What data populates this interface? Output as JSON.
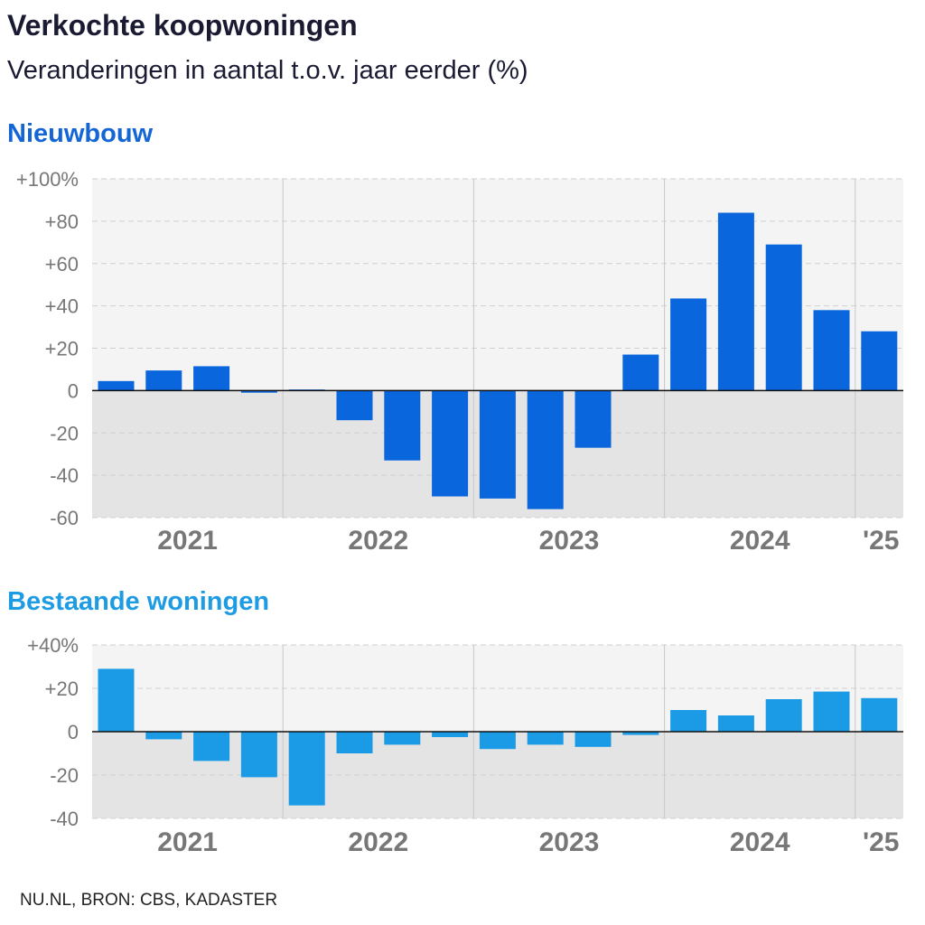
{
  "title": "Verkochte koopwoningen",
  "subtitle": "Veranderingen in aantal t.o.v. jaar eerder (%)",
  "source": "NU.NL, BRON: CBS, KADASTER",
  "chart_data": [
    {
      "type": "bar",
      "title": "Nieuwbouw",
      "color": "#0a66dd",
      "title_color": "#1465d6",
      "categories": [
        "2021 Q1",
        "2021 Q2",
        "2021 Q3",
        "2021 Q4",
        "2022 Q1",
        "2022 Q2",
        "2022 Q3",
        "2022 Q4",
        "2023 Q1",
        "2023 Q2",
        "2023 Q3",
        "2023 Q4",
        "2024 Q1",
        "2024 Q2",
        "2024 Q3",
        "2024 Q4",
        "2025 Q1"
      ],
      "values": [
        4.5,
        9.5,
        11.5,
        -1,
        0.5,
        -14,
        -33,
        -50,
        -51,
        -56,
        -27,
        17,
        43.5,
        84,
        69,
        38,
        28
      ],
      "ylim": [
        -60,
        100
      ],
      "yticks": [
        {
          "v": 100,
          "label": "+100%"
        },
        {
          "v": 80,
          "label": "+80"
        },
        {
          "v": 60,
          "label": "+60"
        },
        {
          "v": 40,
          "label": "+40"
        },
        {
          "v": 20,
          "label": "+20"
        },
        {
          "v": 0,
          "label": "0"
        },
        {
          "v": -20,
          "label": "-20"
        },
        {
          "v": -40,
          "label": "-40"
        },
        {
          "v": -60,
          "label": "-60"
        }
      ],
      "year_labels": [
        "2021",
        "2022",
        "2023",
        "2024",
        "'25"
      ],
      "grid": true
    },
    {
      "type": "bar",
      "title": "Bestaande woningen",
      "color": "#1b9be6",
      "title_color": "#1d9be3",
      "categories": [
        "2021 Q1",
        "2021 Q2",
        "2021 Q3",
        "2021 Q4",
        "2022 Q1",
        "2022 Q2",
        "2022 Q3",
        "2022 Q4",
        "2023 Q1",
        "2023 Q2",
        "2023 Q3",
        "2023 Q4",
        "2024 Q1",
        "2024 Q2",
        "2024 Q3",
        "2024 Q4",
        "2025 Q1"
      ],
      "values": [
        29,
        -3.5,
        -13.5,
        -21,
        -34,
        -10,
        -6,
        -2.5,
        -8,
        -6,
        -7,
        -1.5,
        10,
        7.5,
        15,
        18.5,
        15.5
      ],
      "ylim": [
        -40,
        40
      ],
      "yticks": [
        {
          "v": 40,
          "label": "+40%"
        },
        {
          "v": 20,
          "label": "+20"
        },
        {
          "v": 0,
          "label": "0"
        },
        {
          "v": -20,
          "label": "-20"
        },
        {
          "v": -40,
          "label": "-40"
        }
      ],
      "year_labels": [
        "2021",
        "2022",
        "2023",
        "2024",
        "'25"
      ],
      "grid": true
    }
  ]
}
